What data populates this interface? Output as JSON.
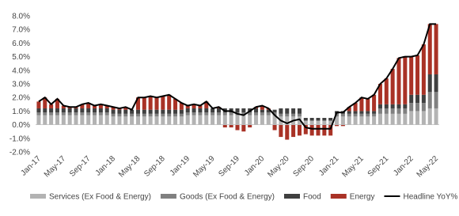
{
  "chart_data": {
    "type": "stacked-bar-line",
    "categories": [
      "Jan-17",
      null,
      null,
      null,
      "May-17",
      null,
      null,
      null,
      "Sep-17",
      null,
      null,
      null,
      "Jan-18",
      null,
      null,
      null,
      "May-18",
      null,
      null,
      null,
      "Sep-18",
      null,
      null,
      null,
      "Jan-19",
      null,
      null,
      null,
      "May-19",
      null,
      null,
      null,
      "Sep-19",
      null,
      null,
      null,
      "Jan-20",
      null,
      null,
      null,
      "May-20",
      null,
      null,
      null,
      "Sep-20",
      null,
      null,
      null,
      "Jan-21",
      null,
      null,
      null,
      "May-21",
      null,
      null,
      null,
      "Sep-21",
      null,
      null,
      null,
      "Jan-22",
      null,
      null,
      null,
      "May-22"
    ],
    "series": [
      {
        "name": "Services (Ex Food & Energy)",
        "color": "#b3b3b3",
        "kind": "bar",
        "values": [
          0.7,
          0.7,
          0.7,
          0.7,
          0.7,
          0.7,
          0.7,
          0.7,
          0.7,
          0.7,
          0.7,
          0.7,
          0.6,
          0.6,
          0.6,
          0.6,
          0.6,
          0.6,
          0.6,
          0.6,
          0.6,
          0.6,
          0.6,
          0.6,
          0.7,
          0.7,
          0.7,
          0.7,
          0.7,
          0.7,
          0.7,
          0.7,
          0.7,
          0.7,
          0.7,
          0.7,
          0.7,
          0.7,
          0.7,
          0.6,
          0.6,
          0.6,
          0.6,
          0.3,
          0.3,
          0.3,
          0.3,
          0.3,
          0.6,
          0.6,
          0.6,
          0.6,
          0.6,
          0.6,
          0.6,
          0.8,
          0.8,
          0.8,
          0.8,
          0.8,
          1.0,
          1.0,
          1.0,
          1.2,
          1.2
        ]
      },
      {
        "name": "Goods (Ex Food & Energy)",
        "color": "#808080",
        "kind": "bar",
        "values": [
          0.2,
          0.2,
          0.2,
          0.2,
          0.2,
          0.2,
          0.2,
          0.2,
          0.2,
          0.2,
          0.2,
          0.2,
          0.2,
          0.2,
          0.2,
          0.2,
          0.2,
          0.2,
          0.2,
          0.2,
          0.2,
          0.2,
          0.2,
          0.2,
          0.2,
          0.2,
          0.2,
          0.2,
          0.2,
          0.2,
          0.2,
          0.2,
          0.2,
          0.2,
          0.2,
          0.2,
          0.2,
          0.2,
          0.2,
          0.2,
          0.2,
          0.2,
          0.2,
          0,
          0,
          0,
          0,
          0,
          0.2,
          0.2,
          0.2,
          0.2,
          0.2,
          0.2,
          0.2,
          0.4,
          0.4,
          0.4,
          0.4,
          0.4,
          0.6,
          0.6,
          0.6,
          1.2,
          1.2
        ]
      },
      {
        "name": "Food",
        "color": "#404040",
        "kind": "bar",
        "values": [
          0.3,
          0.3,
          0.3,
          0.3,
          0.3,
          0.3,
          0.3,
          0.3,
          0.3,
          0.3,
          0.3,
          0.3,
          0.3,
          0.3,
          0.3,
          0.3,
          0.3,
          0.3,
          0.3,
          0.3,
          0.3,
          0.3,
          0.3,
          0.3,
          0.3,
          0.3,
          0.3,
          0.3,
          0.3,
          0.3,
          0.3,
          0.3,
          0.3,
          0.3,
          0.3,
          0.3,
          0.2,
          0.2,
          0.2,
          0.4,
          0.4,
          0.4,
          0.4,
          0.2,
          0.2,
          0.2,
          0.2,
          0.2,
          0.2,
          0.2,
          0.2,
          0.2,
          0.2,
          0.2,
          0.2,
          0.3,
          0.3,
          0.3,
          0.3,
          0.3,
          0.6,
          0.6,
          0.6,
          1.3,
          1.3
        ]
      },
      {
        "name": "Energy",
        "color": "#a93226",
        "kind": "bar",
        "values": [
          0.5,
          0.8,
          0.3,
          0.7,
          0.2,
          0.1,
          0.1,
          0.3,
          0.4,
          0.2,
          0.3,
          0.2,
          0.2,
          0.1,
          0.2,
          0,
          0.9,
          0.9,
          1.0,
          0.9,
          1.0,
          1.1,
          0.8,
          0.5,
          0.2,
          0.3,
          0.2,
          0.5,
          0,
          0.1,
          -0.2,
          -0.2,
          -0.4,
          -0.5,
          -0.2,
          0.1,
          0.3,
          0.1,
          -0.4,
          -0.9,
          -1.1,
          -0.9,
          -0.8,
          -0.7,
          -0.8,
          -0.8,
          -0.8,
          -0.8,
          -0.1,
          -0.1,
          0.3,
          0.6,
          1.0,
          0.9,
          1.2,
          1.5,
          1.9,
          2.6,
          3.4,
          3.5,
          2.8,
          2.9,
          3.7,
          3.7,
          3.7
        ]
      },
      {
        "name": "Headline YoY%",
        "color": "#000000",
        "kind": "line",
        "values": [
          1.7,
          2.0,
          1.5,
          1.9,
          1.4,
          1.3,
          1.3,
          1.5,
          1.6,
          1.4,
          1.5,
          1.4,
          1.3,
          1.2,
          1.3,
          1.1,
          2.0,
          2.0,
          2.1,
          2.0,
          2.1,
          2.2,
          1.9,
          1.6,
          1.4,
          1.5,
          1.4,
          1.7,
          1.2,
          1.3,
          1.0,
          1.0,
          0.8,
          0.7,
          1.0,
          1.3,
          1.4,
          1.2,
          0.7,
          0.3,
          0.1,
          0.3,
          0.4,
          -0.2,
          -0.3,
          -0.3,
          -0.3,
          -0.3,
          0.9,
          0.9,
          1.3,
          1.6,
          2.0,
          1.9,
          2.2,
          3.0,
          3.4,
          4.1,
          4.9,
          5.0,
          5.0,
          5.1,
          5.9,
          7.4,
          7.4
        ]
      }
    ],
    "ylim": [
      -2,
      8
    ],
    "yticks": [
      {
        "value": -2,
        "label": "-2.0%"
      },
      {
        "value": -1,
        "label": "-1.0%"
      },
      {
        "value": 0,
        "label": "0.0%"
      },
      {
        "value": 1,
        "label": "1.0%"
      },
      {
        "value": 2,
        "label": "2.0%"
      },
      {
        "value": 3,
        "label": "3.0%"
      },
      {
        "value": 4,
        "label": "4.0%"
      },
      {
        "value": 5,
        "label": "5.0%"
      },
      {
        "value": 6,
        "label": "6.0%"
      },
      {
        "value": 7,
        "label": "7.0%"
      },
      {
        "value": 8,
        "label": "8.0%"
      }
    ],
    "grid": false,
    "legend": "bottom"
  }
}
